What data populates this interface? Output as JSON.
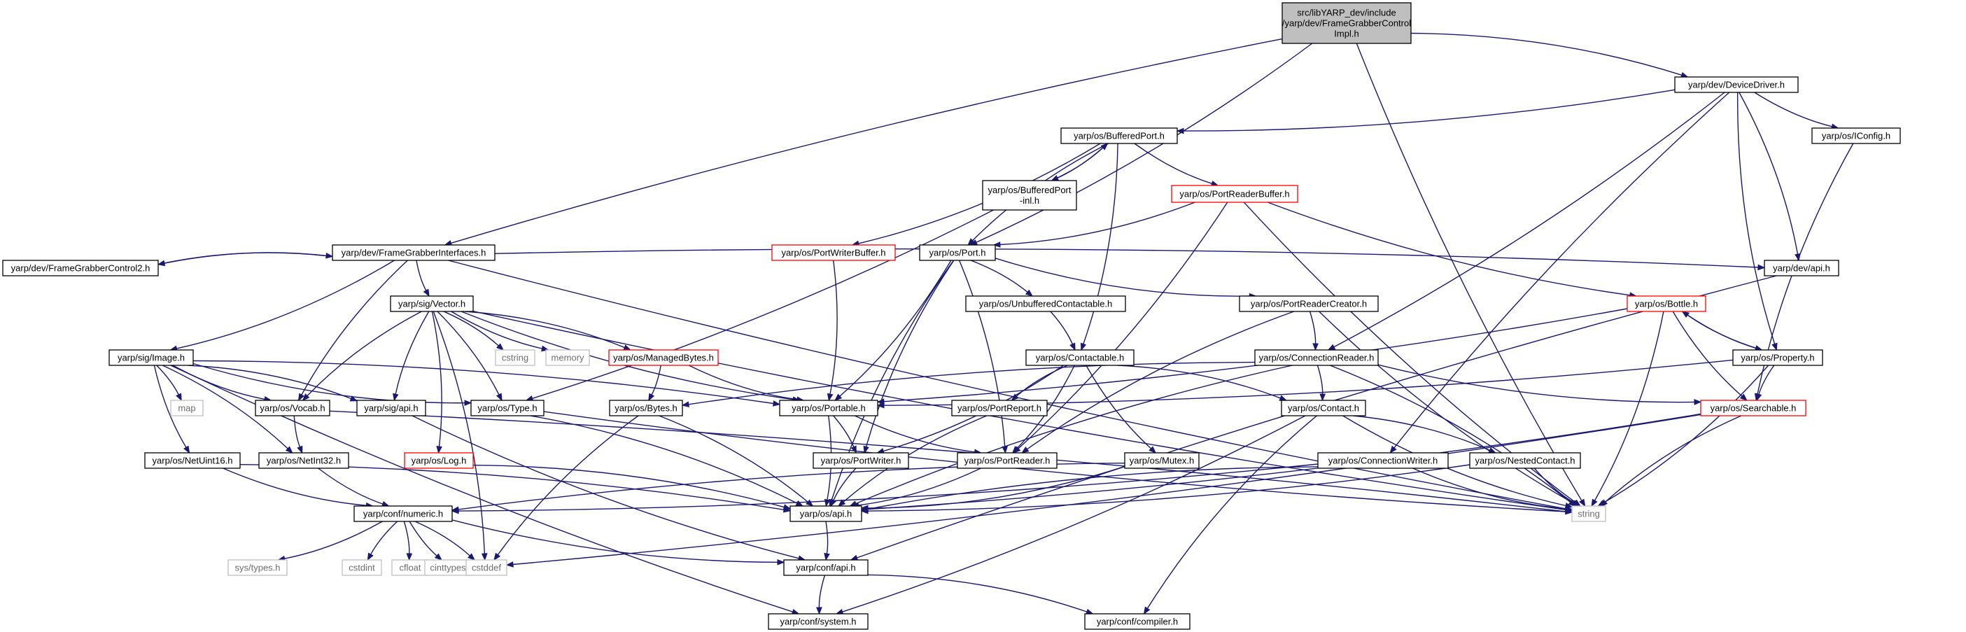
{
  "diagram": {
    "kind": "include dependency graph",
    "colors": {
      "edge": "#191970",
      "normal_border": "#000000",
      "truncated_border": "#ff0000",
      "external_border": "#bfbfbf",
      "root_fill": "#bfbfbf",
      "text": "#000000",
      "external_text": "#6e6e6e"
    },
    "nodes": [
      {
        "id": "root",
        "label": "src/libYARP_dev/include\n/yarp/dev/FrameGrabberControl\nImpl.h",
        "kind": "root"
      },
      {
        "id": "devicedriver",
        "label": "yarp/dev/DeviceDriver.h",
        "kind": "normal"
      },
      {
        "id": "bufferedport",
        "label": "yarp/os/BufferedPort.h",
        "kind": "normal"
      },
      {
        "id": "iconfig",
        "label": "yarp/os/IConfig.h",
        "kind": "normal"
      },
      {
        "id": "bufferedportinl",
        "label": "yarp/os/BufferedPort\n-inl.h",
        "kind": "normal"
      },
      {
        "id": "portreaderbuffer",
        "label": "yarp/os/PortReaderBuffer.h",
        "kind": "truncated"
      },
      {
        "id": "fgi",
        "label": "yarp/dev/FrameGrabberInterfaces.h",
        "kind": "normal"
      },
      {
        "id": "portwriterbuffer",
        "label": "yarp/os/PortWriterBuffer.h",
        "kind": "truncated"
      },
      {
        "id": "port",
        "label": "yarp/os/Port.h",
        "kind": "normal"
      },
      {
        "id": "fgc2",
        "label": "yarp/dev/FrameGrabberControl2.h",
        "kind": "normal"
      },
      {
        "id": "sigvector",
        "label": "yarp/sig/Vector.h",
        "kind": "normal"
      },
      {
        "id": "unbuffered",
        "label": "yarp/os/UnbufferedContactable.h",
        "kind": "normal"
      },
      {
        "id": "portreadercreator",
        "label": "yarp/os/PortReaderCreator.h",
        "kind": "normal"
      },
      {
        "id": "bottle",
        "label": "yarp/os/Bottle.h",
        "kind": "truncated"
      },
      {
        "id": "devapi",
        "label": "yarp/dev/api.h",
        "kind": "normal"
      },
      {
        "id": "sigimage",
        "label": "yarp/sig/Image.h",
        "kind": "normal"
      },
      {
        "id": "cstring",
        "label": "cstring",
        "kind": "external"
      },
      {
        "id": "memory",
        "label": "memory",
        "kind": "external"
      },
      {
        "id": "managedbytes",
        "label": "yarp/os/ManagedBytes.h",
        "kind": "truncated"
      },
      {
        "id": "contactable",
        "label": "yarp/os/Contactable.h",
        "kind": "normal"
      },
      {
        "id": "connectionreader",
        "label": "yarp/os/ConnectionReader.h",
        "kind": "normal"
      },
      {
        "id": "property",
        "label": "yarp/os/Property.h",
        "kind": "normal"
      },
      {
        "id": "map",
        "label": "map",
        "kind": "external"
      },
      {
        "id": "vocab",
        "label": "yarp/os/Vocab.h",
        "kind": "normal"
      },
      {
        "id": "sigapi",
        "label": "yarp/sig/api.h",
        "kind": "normal"
      },
      {
        "id": "type",
        "label": "yarp/os/Type.h",
        "kind": "normal"
      },
      {
        "id": "bytes",
        "label": "yarp/os/Bytes.h",
        "kind": "normal"
      },
      {
        "id": "portable",
        "label": "yarp/os/Portable.h",
        "kind": "normal"
      },
      {
        "id": "portreport",
        "label": "yarp/os/PortReport.h",
        "kind": "normal"
      },
      {
        "id": "contact",
        "label": "yarp/os/Contact.h",
        "kind": "normal"
      },
      {
        "id": "searchable",
        "label": "yarp/os/Searchable.h",
        "kind": "truncated"
      },
      {
        "id": "netuint16",
        "label": "yarp/os/NetUint16.h",
        "kind": "normal"
      },
      {
        "id": "netint32",
        "label": "yarp/os/NetInt32.h",
        "kind": "normal"
      },
      {
        "id": "log",
        "label": "yarp/os/Log.h",
        "kind": "truncated"
      },
      {
        "id": "portwriter",
        "label": "yarp/os/PortWriter.h",
        "kind": "normal"
      },
      {
        "id": "portreader",
        "label": "yarp/os/PortReader.h",
        "kind": "normal"
      },
      {
        "id": "mutex",
        "label": "yarp/os/Mutex.h",
        "kind": "normal"
      },
      {
        "id": "connectionwriter",
        "label": "yarp/os/ConnectionWriter.h",
        "kind": "normal"
      },
      {
        "id": "nestedcontact",
        "label": "yarp/os/NestedContact.h",
        "kind": "normal"
      },
      {
        "id": "string",
        "label": "string",
        "kind": "external"
      },
      {
        "id": "confnumeric",
        "label": "yarp/conf/numeric.h",
        "kind": "normal"
      },
      {
        "id": "osapi",
        "label": "yarp/os/api.h",
        "kind": "normal"
      },
      {
        "id": "systypes",
        "label": "sys/types.h",
        "kind": "external"
      },
      {
        "id": "cstdint",
        "label": "cstdint",
        "kind": "external"
      },
      {
        "id": "cfloat",
        "label": "cfloat",
        "kind": "external"
      },
      {
        "id": "cinttypes",
        "label": "cinttypes",
        "kind": "external"
      },
      {
        "id": "cstddef",
        "label": "cstddef",
        "kind": "external"
      },
      {
        "id": "confapi",
        "label": "yarp/conf/api.h",
        "kind": "normal"
      },
      {
        "id": "confsystem",
        "label": "yarp/conf/system.h",
        "kind": "normal"
      },
      {
        "id": "confcompiler",
        "label": "yarp/conf/compiler.h",
        "kind": "normal"
      }
    ],
    "edges": [
      [
        "root",
        "devicedriver"
      ],
      [
        "root",
        "fgi"
      ],
      [
        "root",
        "port"
      ],
      [
        "root",
        "string"
      ],
      [
        "devicedriver",
        "bufferedport"
      ],
      [
        "devicedriver",
        "iconfig"
      ],
      [
        "devicedriver",
        "devapi"
      ],
      [
        "devicedriver",
        "property"
      ],
      [
        "devicedriver",
        "connectionreader"
      ],
      [
        "devicedriver",
        "connectionwriter"
      ],
      [
        "bufferedport",
        "bufferedportinl"
      ],
      [
        "bufferedport",
        "portreaderbuffer"
      ],
      [
        "bufferedport",
        "portwriterbuffer"
      ],
      [
        "bufferedport",
        "port"
      ],
      [
        "bufferedport",
        "contactable"
      ],
      [
        "bufferedportinl",
        "bufferedport"
      ],
      [
        "bufferedportinl",
        "type"
      ],
      [
        "iconfig",
        "searchable"
      ],
      [
        "portreaderbuffer",
        "port"
      ],
      [
        "portreaderbuffer",
        "bottle"
      ],
      [
        "portreaderbuffer",
        "portreader"
      ],
      [
        "portreaderbuffer",
        "string"
      ],
      [
        "portwriterbuffer",
        "portable"
      ],
      [
        "fgi",
        "fgc2"
      ],
      [
        "fgc2",
        "fgi"
      ],
      [
        "fgi",
        "sigvector"
      ],
      [
        "fgi",
        "sigimage"
      ],
      [
        "fgi",
        "vocab"
      ],
      [
        "fgi",
        "devapi"
      ],
      [
        "fgi",
        "string"
      ],
      [
        "port",
        "unbuffered"
      ],
      [
        "port",
        "portreadercreator"
      ],
      [
        "port",
        "portable"
      ],
      [
        "port",
        "portwriter"
      ],
      [
        "port",
        "portreader"
      ],
      [
        "port",
        "osapi"
      ],
      [
        "sigvector",
        "cstring"
      ],
      [
        "sigvector",
        "memory"
      ],
      [
        "sigvector",
        "managedbytes"
      ],
      [
        "sigvector",
        "portable"
      ],
      [
        "sigvector",
        "type"
      ],
      [
        "sigvector",
        "sigapi"
      ],
      [
        "sigvector",
        "log"
      ],
      [
        "sigvector",
        "vocab"
      ],
      [
        "sigvector",
        "cstddef"
      ],
      [
        "sigvector",
        "string"
      ],
      [
        "unbuffered",
        "contactable"
      ],
      [
        "portreadercreator",
        "portreader"
      ],
      [
        "portreadercreator",
        "connectionreader"
      ],
      [
        "portreadercreator",
        "string"
      ],
      [
        "bottle",
        "portable"
      ],
      [
        "bottle",
        "property"
      ],
      [
        "property",
        "bottle"
      ],
      [
        "bottle",
        "searchable"
      ],
      [
        "bottle",
        "string"
      ],
      [
        "devapi",
        "confapi"
      ],
      [
        "sigimage",
        "map"
      ],
      [
        "sigimage",
        "vocab"
      ],
      [
        "sigimage",
        "sigapi"
      ],
      [
        "sigimage",
        "type"
      ],
      [
        "sigimage",
        "portable"
      ],
      [
        "sigimage",
        "netuint16"
      ],
      [
        "sigimage",
        "netint32"
      ],
      [
        "sigimage",
        "confsystem"
      ],
      [
        "managedbytes",
        "bytes"
      ],
      [
        "managedbytes",
        "portable"
      ],
      [
        "contactable",
        "portwriter"
      ],
      [
        "contactable",
        "portreport"
      ],
      [
        "contactable",
        "contact"
      ],
      [
        "contactable",
        "mutex"
      ],
      [
        "contactable",
        "portreader"
      ],
      [
        "connectionreader",
        "bytes"
      ],
      [
        "connectionreader",
        "contact"
      ],
      [
        "connectionreader",
        "searchable"
      ],
      [
        "connectionreader",
        "string"
      ],
      [
        "connectionreader",
        "osapi"
      ],
      [
        "property",
        "portable"
      ],
      [
        "property",
        "searchable"
      ],
      [
        "property",
        "string"
      ],
      [
        "vocab",
        "netint32"
      ],
      [
        "vocab",
        "string"
      ],
      [
        "sigapi",
        "confapi"
      ],
      [
        "type",
        "osapi"
      ],
      [
        "type",
        "string"
      ],
      [
        "bytes",
        "osapi"
      ],
      [
        "bytes",
        "cstddef"
      ],
      [
        "portable",
        "portwriter"
      ],
      [
        "portable",
        "portreader"
      ],
      [
        "portable",
        "osapi"
      ],
      [
        "portreport",
        "osapi"
      ],
      [
        "contact",
        "nestedcontact"
      ],
      [
        "contact",
        "string"
      ],
      [
        "contact",
        "confsystem"
      ],
      [
        "contact",
        "confcompiler"
      ],
      [
        "searchable",
        "osapi"
      ],
      [
        "searchable",
        "string"
      ],
      [
        "searchable",
        "cstddef"
      ],
      [
        "netuint16",
        "confnumeric"
      ],
      [
        "netuint16",
        "osapi"
      ],
      [
        "netint32",
        "confnumeric"
      ],
      [
        "log",
        "osapi"
      ],
      [
        "portwriter",
        "osapi"
      ],
      [
        "portreader",
        "osapi"
      ],
      [
        "mutex",
        "confnumeric"
      ],
      [
        "mutex",
        "osapi"
      ],
      [
        "connectionwriter",
        "osapi"
      ],
      [
        "connectionwriter",
        "confnumeric"
      ],
      [
        "connectionwriter",
        "string"
      ],
      [
        "nestedcontact",
        "osapi"
      ],
      [
        "nestedcontact",
        "string"
      ],
      [
        "confnumeric",
        "systypes"
      ],
      [
        "confnumeric",
        "cstdint"
      ],
      [
        "confnumeric",
        "cfloat"
      ],
      [
        "confnumeric",
        "cinttypes"
      ],
      [
        "confnumeric",
        "cstddef"
      ],
      [
        "confnumeric",
        "confapi"
      ],
      [
        "osapi",
        "confapi"
      ],
      [
        "confapi",
        "confsystem"
      ],
      [
        "confapi",
        "confcompiler"
      ]
    ]
  }
}
